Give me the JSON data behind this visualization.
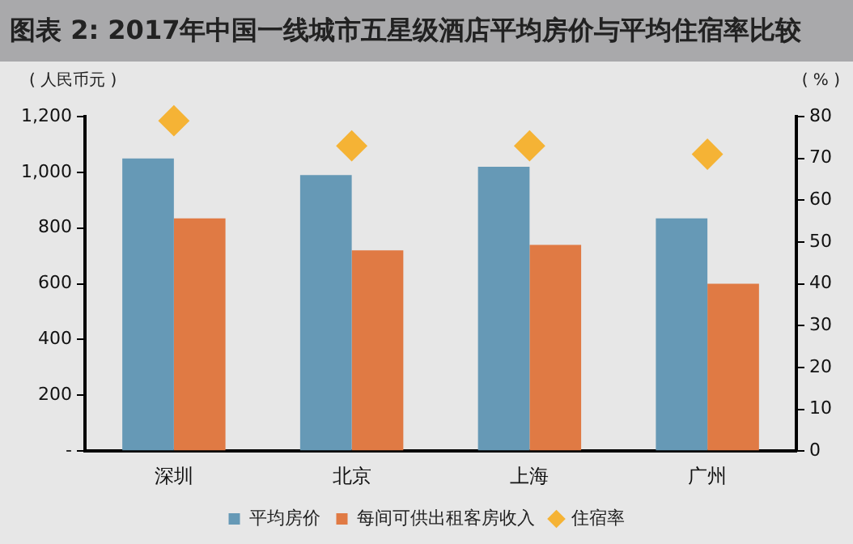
{
  "chart_data": {
    "type": "bar",
    "title": "图表 2: 2017年中国一线城市五星级酒店平均房价与平均住宿率比较",
    "ylabel": "( 人民币元 )",
    "y2label": "( % )",
    "categories": [
      "深圳",
      "北京",
      "上海",
      "广州"
    ],
    "series": [
      {
        "name": "平均房价",
        "color": "#6699b6",
        "values": [
          1050,
          990,
          1020,
          835
        ]
      },
      {
        "name": "每间可供出租客房收入",
        "color": "#e07a44",
        "values": [
          835,
          720,
          740,
          600
        ]
      },
      {
        "name": "住宿率",
        "type": "scatter",
        "axis": "y2",
        "marker": "diamond",
        "color": "#f5b335",
        "x": [
          "深圳",
          "北京",
          "上海",
          "广州"
        ],
        "values": [
          79,
          73,
          73,
          71
        ]
      }
    ],
    "ylim": [
      0,
      1200
    ],
    "yticks": [
      {
        "value": 0,
        "label": "-"
      },
      200,
      400,
      600,
      800,
      {
        "value": 1000,
        "label": "1,000"
      },
      {
        "value": 1200,
        "label": "1,200"
      }
    ],
    "y2lim": [
      0,
      80
    ],
    "y2ticks": [
      0,
      10,
      20,
      30,
      40,
      50,
      60,
      70,
      80
    ],
    "grid": false,
    "legend": "bottom"
  }
}
